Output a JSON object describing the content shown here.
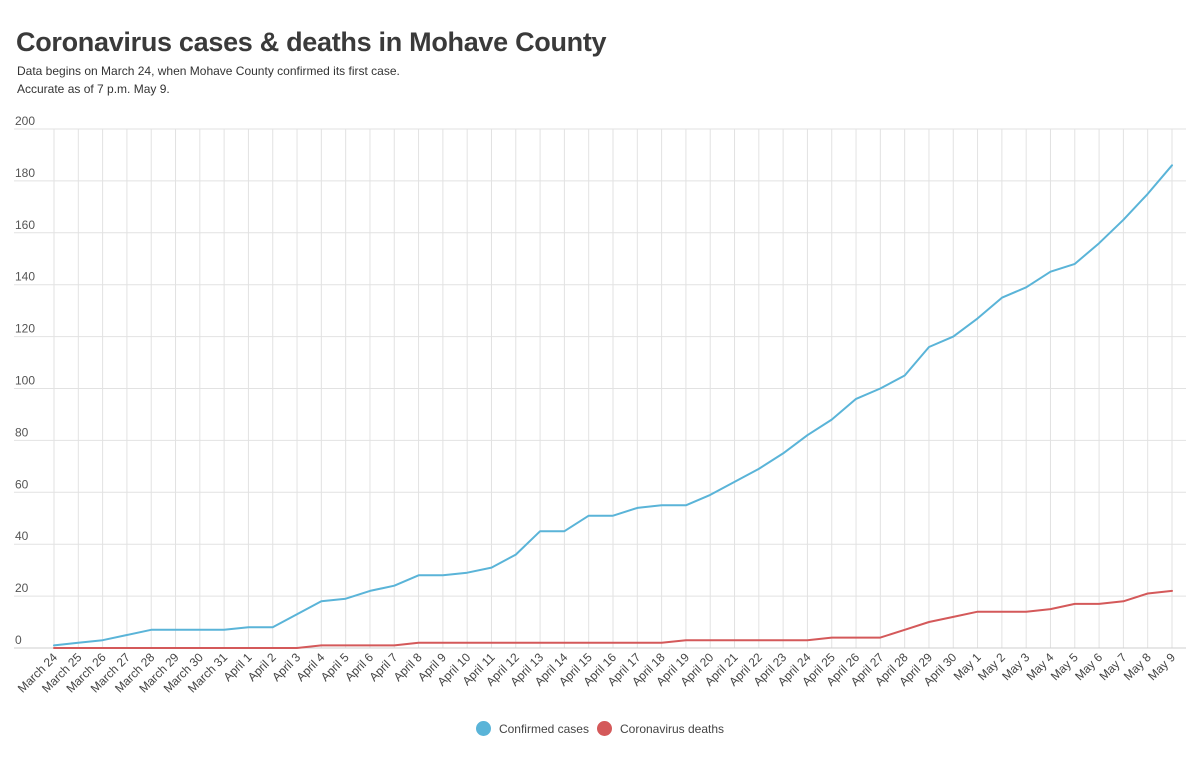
{
  "chart_data": {
    "type": "line",
    "title": "Coronavirus cases & deaths in Mohave County",
    "subtitle_lines": [
      "Data begins on March 24, when Mohave County confirmed its first case.",
      "Accurate as of 7 p.m. May 9."
    ],
    "xlabel": "",
    "ylabel": "",
    "ylim": [
      0,
      200
    ],
    "yticks": [
      0,
      20,
      40,
      60,
      80,
      100,
      120,
      140,
      160,
      180,
      200
    ],
    "grid": true,
    "legend_position": "bottom-center",
    "categories": [
      "March 24",
      "March 25",
      "March 26",
      "March 27",
      "March 28",
      "March 29",
      "March 30",
      "March 31",
      "April 1",
      "April 2",
      "April 3",
      "April 4",
      "April 5",
      "April 6",
      "April 7",
      "April 8",
      "April 9",
      "April 10",
      "April 11",
      "April 12",
      "April 13",
      "April 14",
      "April 15",
      "April 16",
      "April 17",
      "April 18",
      "April 19",
      "April 20",
      "April 21",
      "April 22",
      "April 23",
      "April 24",
      "April 25",
      "April 26",
      "April 27",
      "April 28",
      "April 29",
      "April 30",
      "May 1",
      "May 2",
      "May 3",
      "May 4",
      "May 5",
      "May 6",
      "May 7",
      "May 8",
      "May 9"
    ],
    "series": [
      {
        "name": "Confirmed cases",
        "color": "#5ab4d8",
        "values": [
          1,
          2,
          3,
          5,
          7,
          7,
          7,
          7,
          8,
          8,
          13,
          18,
          19,
          22,
          24,
          28,
          28,
          29,
          31,
          36,
          45,
          45,
          51,
          51,
          54,
          55,
          55,
          59,
          64,
          69,
          75,
          82,
          88,
          96,
          100,
          105,
          116,
          120,
          127,
          135,
          139,
          145,
          148,
          156,
          165,
          175,
          186
        ]
      },
      {
        "name": "Coronavirus deaths",
        "color": "#d4595a",
        "values": [
          0,
          0,
          0,
          0,
          0,
          0,
          0,
          0,
          0,
          0,
          0,
          1,
          1,
          1,
          1,
          2,
          2,
          2,
          2,
          2,
          2,
          2,
          2,
          2,
          2,
          2,
          3,
          3,
          3,
          3,
          3,
          3,
          4,
          4,
          4,
          7,
          10,
          12,
          14,
          14,
          14,
          15,
          17,
          17,
          18,
          21,
          22
        ]
      }
    ]
  }
}
